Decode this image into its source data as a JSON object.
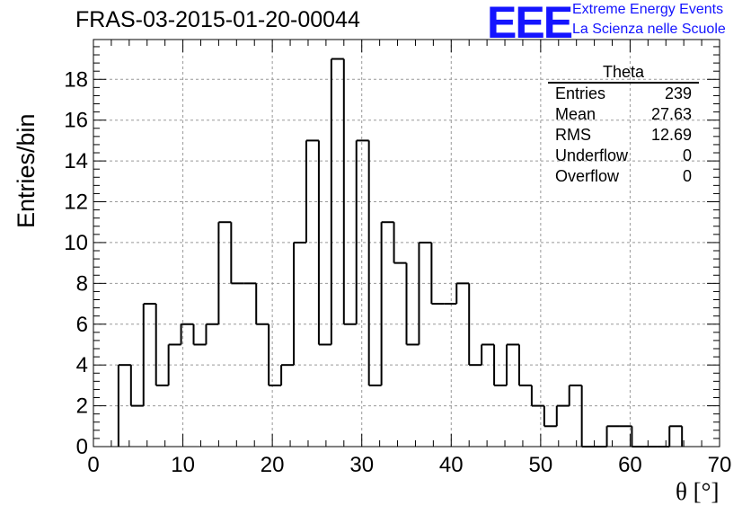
{
  "title": "FRAS-03-2015-01-20-00044",
  "logo": {
    "mark": "EEE",
    "line1": "Extreme Energy Events",
    "line2": "La Scienza nelle Scuole",
    "color": "#1414ff"
  },
  "stats": {
    "name": "Theta",
    "rows": [
      {
        "label": "Entries",
        "value": "239"
      },
      {
        "label": "Mean",
        "value": "27.63"
      },
      {
        "label": "RMS",
        "value": "12.69"
      },
      {
        "label": "Underflow",
        "value": "0"
      },
      {
        "label": "Overflow",
        "value": "0"
      }
    ]
  },
  "chart_data": {
    "type": "bar",
    "style": "step-histogram",
    "title": "FRAS-03-2015-01-20-00044",
    "xlabel": "θ [°]",
    "ylabel": "Entries/bin",
    "xlim": [
      0,
      70
    ],
    "ylim": [
      0,
      19.95
    ],
    "bin_width": 1.4,
    "bin_edges_start": 2.8,
    "values": [
      4,
      2,
      7,
      3,
      5,
      6,
      5,
      6,
      11,
      8,
      8,
      6,
      3,
      4,
      10,
      15,
      5,
      19,
      6,
      15,
      3,
      11,
      9,
      5,
      10,
      7,
      7,
      8,
      4,
      5,
      3,
      5,
      3,
      2,
      1,
      2,
      3,
      0,
      0,
      1,
      1,
      0,
      0,
      0,
      1
    ],
    "xticks": [
      0,
      10,
      20,
      30,
      40,
      50,
      60,
      70
    ],
    "yticks": [
      0,
      2,
      4,
      6,
      8,
      10,
      12,
      14,
      16,
      18
    ],
    "grid": true,
    "line_color": "#000000"
  }
}
